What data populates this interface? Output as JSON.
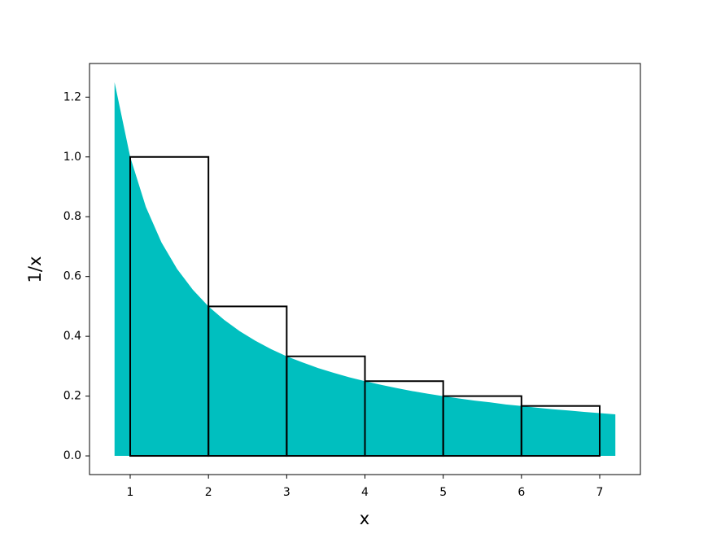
{
  "chart_data": {
    "type": "area",
    "xlabel": "x",
    "ylabel": "1/x",
    "xlim": [
      0.48,
      7.52
    ],
    "ylim": [
      -0.0625,
      1.3125
    ],
    "xticks": [
      1,
      2,
      3,
      4,
      5,
      6,
      7
    ],
    "yticks": [
      {
        "value": 0,
        "label": "0.0"
      },
      {
        "value": 0.2,
        "label": "0.2"
      },
      {
        "value": 0.4,
        "label": "0.4"
      },
      {
        "value": 0.6,
        "label": "0.6"
      },
      {
        "value": 0.8,
        "label": "0.8"
      },
      {
        "value": 1,
        "label": "1.0"
      },
      {
        "value": 1.2,
        "label": "1.2"
      }
    ],
    "series": [
      {
        "type": "area",
        "color": "#00bfbf",
        "x": [
          0.8,
          1.0,
          1.2,
          1.4,
          1.6,
          1.8,
          2.0,
          2.2,
          2.4,
          2.6,
          2.8,
          3.0,
          3.2,
          3.4,
          3.6,
          3.8,
          4.0,
          4.2,
          4.4,
          4.6,
          4.8,
          5.0,
          5.2,
          5.4,
          5.6,
          5.8,
          6.0,
          6.2,
          6.4,
          6.6,
          6.8,
          7.0,
          7.2
        ],
        "values": [
          1.25,
          1.0,
          0.833,
          0.714,
          0.625,
          0.556,
          0.5,
          0.455,
          0.417,
          0.385,
          0.357,
          0.333,
          0.313,
          0.294,
          0.278,
          0.263,
          0.25,
          0.238,
          0.227,
          0.217,
          0.208,
          0.2,
          0.192,
          0.185,
          0.179,
          0.172,
          0.167,
          0.161,
          0.156,
          0.152,
          0.147,
          0.143,
          0.139
        ]
      },
      {
        "type": "histogram",
        "color": "#000000",
        "bins": [
          1,
          2,
          3,
          4,
          5,
          6,
          7
        ],
        "values": [
          1.0,
          0.5,
          0.333,
          0.25,
          0.2,
          0.167
        ]
      }
    ]
  }
}
